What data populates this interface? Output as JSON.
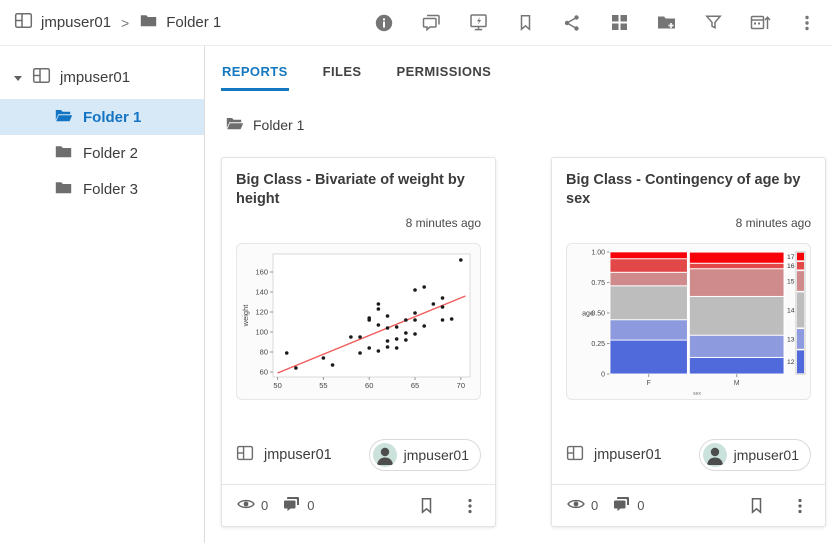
{
  "topbar": {
    "breadcrumb": {
      "space_label": "jmpuser01",
      "separator": ">",
      "folder_label": "Folder 1"
    },
    "action_icons": [
      "info-icon",
      "comments-icon",
      "jmp-live-monitor-icon",
      "bookmark-icon",
      "share-icon",
      "grid-view-icon",
      "new-folder-icon",
      "filter-icon",
      "sort-by-date-icon",
      "more-icon"
    ]
  },
  "sidebar": {
    "root_label": "jmpuser01",
    "items": [
      {
        "label": "Folder 1",
        "selected": true
      },
      {
        "label": "Folder 2",
        "selected": false
      },
      {
        "label": "Folder 3",
        "selected": false
      }
    ]
  },
  "tabs": [
    {
      "label": "REPORTS",
      "active": true
    },
    {
      "label": "FILES",
      "active": false
    },
    {
      "label": "PERMISSIONS",
      "active": false
    }
  ],
  "content": {
    "folder_label": "Folder 1"
  },
  "cards": [
    {
      "title": "Big Class - Bivariate of weight by height",
      "time": "8 minutes ago",
      "space": "jmpuser01",
      "author": "jmpuser01",
      "views": "0",
      "comments": "0"
    },
    {
      "title": "Big Class - Contingency of age by sex",
      "time": "8 minutes ago",
      "space": "jmpuser01",
      "author": "jmpuser01",
      "views": "0",
      "comments": "0"
    }
  ],
  "colors": {
    "accent_blue": "#1478c0",
    "selected_row_bg": "#d7e9f7",
    "icon_gray": "#757575",
    "avatar_bg": "#cbe2dc",
    "fit_line_red": "#f15b5b"
  },
  "chart_data": [
    {
      "type": "scatter",
      "title": "Big Class - Bivariate of weight by height",
      "ylabel": "weight",
      "xlim": [
        49.5,
        71
      ],
      "ylim": [
        55,
        178
      ],
      "xticks": [
        50,
        55,
        60,
        65,
        70
      ],
      "yticks": [
        60,
        80,
        100,
        120,
        140,
        160
      ],
      "point_color": "#1a1a1a",
      "points": [
        [
          51,
          79
        ],
        [
          52,
          64
        ],
        [
          55,
          74
        ],
        [
          56,
          67
        ],
        [
          58,
          95
        ],
        [
          59,
          79
        ],
        [
          59,
          95
        ],
        [
          60,
          84
        ],
        [
          60,
          112
        ],
        [
          60,
          114
        ],
        [
          61,
          81
        ],
        [
          61,
          107
        ],
        [
          61,
          123
        ],
        [
          61,
          128
        ],
        [
          62,
          85
        ],
        [
          62,
          91
        ],
        [
          62,
          104
        ],
        [
          62,
          116
        ],
        [
          63,
          84
        ],
        [
          63,
          93
        ],
        [
          63,
          105
        ],
        [
          64,
          92
        ],
        [
          64,
          99
        ],
        [
          64,
          112
        ],
        [
          65,
          98
        ],
        [
          65,
          112
        ],
        [
          65,
          119
        ],
        [
          65,
          142
        ],
        [
          66,
          106
        ],
        [
          66,
          145
        ],
        [
          67,
          128
        ],
        [
          68,
          112
        ],
        [
          68,
          125
        ],
        [
          68,
          134
        ],
        [
          69,
          113
        ],
        [
          70,
          172
        ]
      ],
      "fit_line": {
        "x": [
          50,
          70.5
        ],
        "y": [
          59,
          136
        ],
        "color": "#f15b5b"
      }
    },
    {
      "type": "mosaic",
      "title": "Big Class - Contingency of age by sex",
      "ylabel": "age",
      "xlabel": "sex",
      "ytick_labels": [
        "0",
        "0.25",
        "0.50",
        "0.75",
        "1.00"
      ],
      "ytick_values": [
        0,
        0.25,
        0.5,
        0.75,
        1.0
      ],
      "categories": [
        "F",
        "M"
      ],
      "col_widths": [
        0.45,
        0.55
      ],
      "levels": [
        "12",
        "13",
        "14",
        "15",
        "16",
        "17"
      ],
      "level_colors": [
        "#5069db",
        "#8d9bde",
        "#bdbdbd",
        "#cf8b8b",
        "#e24848",
        "#f80309"
      ],
      "proportions": {
        "F": [
          0.278,
          0.167,
          0.278,
          0.111,
          0.111,
          0.056
        ],
        "M": [
          0.136,
          0.182,
          0.318,
          0.227,
          0.045,
          0.091
        ]
      },
      "legend_proportions": [
        0.2,
        0.175,
        0.3,
        0.175,
        0.075,
        0.075
      ]
    }
  ]
}
